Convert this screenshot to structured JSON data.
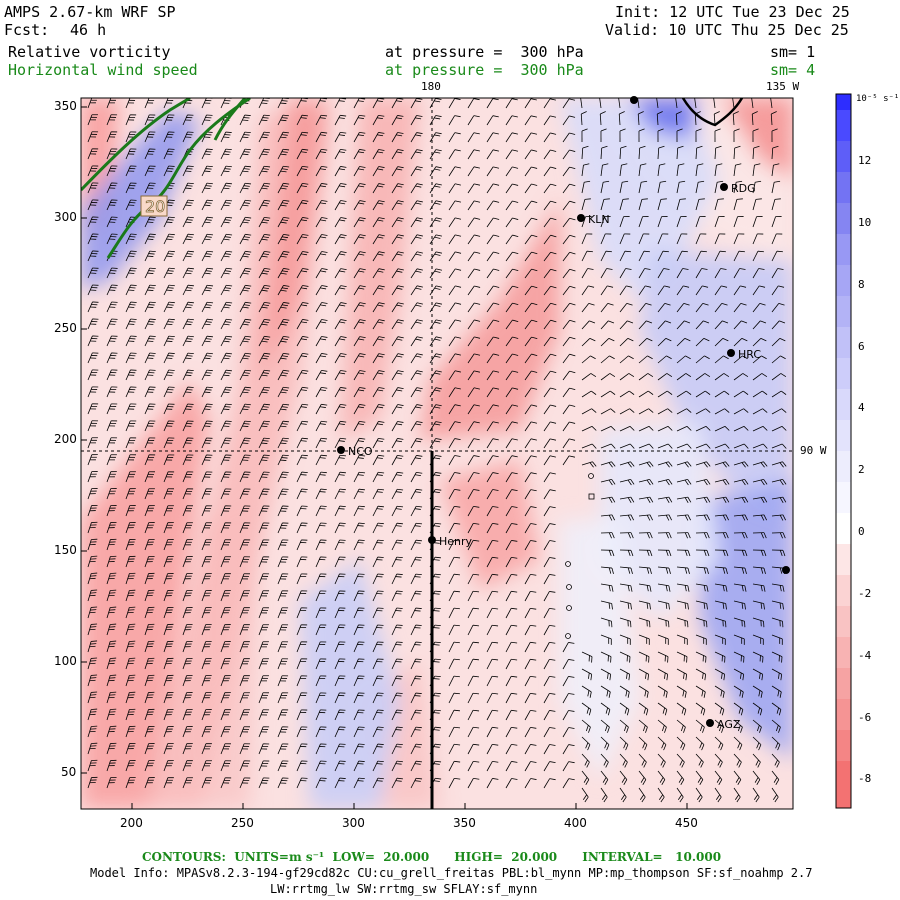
{
  "header": {
    "model": "AMPS 2.67-km WRF SP",
    "forecast_label": "Fcst:",
    "forecast_value": "46 h",
    "init": "Init: 12 UTC Tue 23 Dec 25",
    "valid": "Valid: 10 UTC Thu 25 Dec 25"
  },
  "fields": [
    {
      "name": "Relative vorticity",
      "pressure": "at pressure =  300 hPa",
      "sm": "sm= 1",
      "color": "#000000"
    },
    {
      "name": "Horizontal wind speed",
      "pressure": "at pressure =  300 hPa",
      "sm": "sm= 4",
      "color": "#1a8a1a"
    }
  ],
  "map": {
    "x_ticks": [
      "200",
      "250",
      "300",
      "350",
      "400",
      "450"
    ],
    "y_ticks": [
      "350",
      "300",
      "250",
      "200",
      "150",
      "100",
      "50"
    ],
    "meridian_labels": {
      "top_180": "180",
      "top_135w": "135 W",
      "right_90w": "90 W"
    },
    "contour_label": "20",
    "stations": [
      "RDG",
      "KLN",
      "HRC",
      "NCO",
      "Henry",
      "AGZ"
    ]
  },
  "colorbar": {
    "unit": "10⁻⁵ s⁻¹",
    "labels": [
      "12",
      "10",
      "8",
      "6",
      "4",
      "2",
      "0",
      "-2",
      "-4",
      "-6",
      "-8"
    ]
  },
  "footer": {
    "contours": "CONTOURS:  UNITS=m s⁻¹  LOW=  20.000      HIGH=  20.000      INTERVAL=   10.000",
    "model_info": "Model Info: MPASv8.2.3-194-gf29cd82c CU:cu_grell_freitas PBL:bl_mynn MP:mp_thompson SF:sf_noahmp 2.7",
    "physics": "LW:rrtmg_lw SW:rrtmg_sw SFLAY:sf_mynn"
  },
  "colors": {
    "positive": "#ff7070",
    "negative": "#3b3bff",
    "speed_contour": "#1a7a1a"
  }
}
